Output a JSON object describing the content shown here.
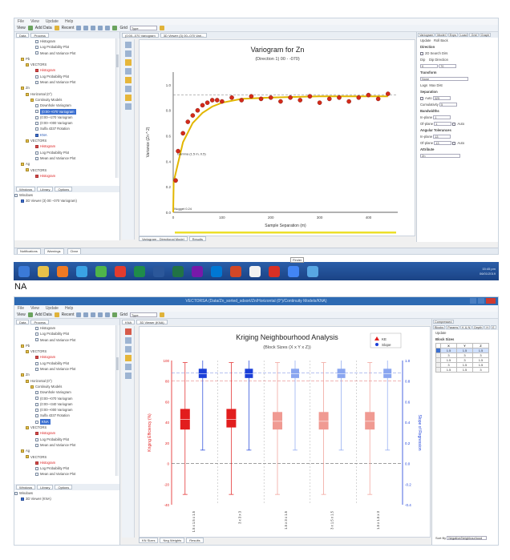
{
  "top": {
    "menu": [
      "File",
      "View",
      "Update",
      "Help"
    ],
    "toolbar": {
      "view": "View",
      "add_data": "Add Data",
      "recent": "Recent",
      "grid_label": "Grid",
      "type_value": "Type"
    },
    "left_tabs": [
      "Data",
      "Process"
    ],
    "tree": [
      {
        "text": "Histogram",
        "indent": 4,
        "icon": "chart-icon",
        "cls": ""
      },
      {
        "text": "Log Probability Plot",
        "indent": 4,
        "icon": "chart-icon",
        "cls": ""
      },
      {
        "text": "Mean and Variance Plot",
        "indent": 4,
        "icon": "chart-icon",
        "cls": ""
      },
      {
        "text": "Pb",
        "indent": 1,
        "icon": "folder-icon",
        "cls": ""
      },
      {
        "text": "VECTORS",
        "indent": 2,
        "icon": "folder-icon",
        "cls": ""
      },
      {
        "text": "Histogram",
        "indent": 4,
        "icon": "chart-icon",
        "cls": "red"
      },
      {
        "text": "Log Probability Plot",
        "indent": 4,
        "icon": "chart-icon",
        "cls": ""
      },
      {
        "text": "Mean and Variance Plot",
        "indent": 4,
        "icon": "chart-icon",
        "cls": ""
      },
      {
        "text": "Zn",
        "indent": 1,
        "icon": "folder-icon",
        "cls": ""
      },
      {
        "text": "Horizontal (0°)",
        "indent": 2,
        "icon": "folder-icon",
        "cls": ""
      },
      {
        "text": "Continuity Models",
        "indent": 3,
        "icon": "folder-icon",
        "cls": ""
      },
      {
        "text": "Downhole Variogram",
        "indent": 4,
        "icon": "chart-icon",
        "cls": ""
      },
      {
        "text": "(0:00-+070 Variogram",
        "indent": 4,
        "icon": "chart-icon",
        "cls": "sel"
      },
      {
        "text": "(0:00-+270 Variogram",
        "indent": 4,
        "icon": "chart-icon",
        "cls": ""
      },
      {
        "text": "(0:00-+000 Variogram",
        "indent": 4,
        "icon": "chart-icon",
        "cls": ""
      },
      {
        "text": "Sulfa 4337 Rotation",
        "indent": 4,
        "icon": "chart-icon",
        "cls": ""
      },
      {
        "text": "KNA",
        "indent": 4,
        "icon": "chart-icon",
        "cls": "blu"
      },
      {
        "text": "VECTORS",
        "indent": 2,
        "icon": "folder-icon",
        "cls": ""
      },
      {
        "text": "Histogram",
        "indent": 4,
        "icon": "chart-icon",
        "cls": "red"
      },
      {
        "text": "Log Probability Plot",
        "indent": 4,
        "icon": "chart-icon",
        "cls": ""
      },
      {
        "text": "Mean and Variance Plot",
        "indent": 4,
        "icon": "chart-icon",
        "cls": ""
      },
      {
        "text": "Ag",
        "indent": 1,
        "icon": "folder-icon",
        "cls": ""
      },
      {
        "text": "VECTORS",
        "indent": 2,
        "icon": "folder-icon",
        "cls": ""
      },
      {
        "text": "Histogram",
        "indent": 4,
        "icon": "chart-icon",
        "cls": "red"
      }
    ],
    "bottom_tabs": [
      "Windows",
      "Library",
      "Options"
    ],
    "windows_list": [
      "Windows",
      "3D Viewer (3) 00:--070 Variogram)"
    ],
    "doc_tabs": [
      "(0:00--070 Variogram",
      "3D Viewer (3) 00--070 Vari..."
    ],
    "status_tabs": [
      "Notifications",
      "Warnings",
      "Clear"
    ],
    "bottom_plot_tabs": [
      "Variogram - Directional Model",
      "Results"
    ],
    "right": {
      "tab_labels": [
        "Variogram",
        "Model",
        "Exps",
        "Load",
        "Grid",
        "Graph"
      ],
      "update_label": "Update",
      "rollback_label": "Roll Back",
      "direction_label": "Direction",
      "use_search_label": "2D Search Dirs",
      "dip_label": "Dip",
      "dip_dir_label": "Dip Direction",
      "dip_value": "0",
      "dip_dir_value": "70",
      "transform_label": "Transform",
      "transform_value": "None",
      "lag_label": "Lags",
      "max_dist_label": "Max Dist",
      "sep_label": "Separation",
      "auto_label": "Auto",
      "auto_value": "325",
      "cumulative_label": "Cumulativity",
      "cumulative_value": "5",
      "bandwidths_label": "Bandwidths",
      "inplane_label": "In-plane",
      "inplane_value": "1",
      "ofplane_label": "Of-plane",
      "ofplane_value": "1",
      "angular_label": "Angular Tolerances",
      "ang_inplane_value": "13",
      "ang_ofplane_value": "13",
      "auto_chk_label": "Auto",
      "attribute_label": "Attribute",
      "attribute_value": "Zn"
    },
    "chart_data": {
      "type": "scatter",
      "title": "Variogram for Zn",
      "subtitle": "(Direction 1) 00 - -070)",
      "xlabel": "Sample Separation (m)",
      "ylabel": "Variance (Zn ^ 2)",
      "xlim": [
        0,
        460
      ],
      "ylim": [
        0,
        1.1
      ],
      "x_ticks": [
        "0",
        "100",
        "200",
        "300",
        "400"
      ],
      "y_ticks": [
        "0.0",
        "0.2",
        "0.4",
        "0.6",
        "0.8",
        "1.0"
      ],
      "sill": 0.92,
      "annotations": [
        "Gamma (1.5 m, 0.5)",
        "Nugget 0.24"
      ],
      "series": [
        {
          "name": "Experimental",
          "color": "#d42a1a",
          "x": [
            5,
            10,
            20,
            30,
            40,
            50,
            60,
            70,
            80,
            90,
            100,
            120,
            140,
            160,
            180,
            200,
            220,
            240,
            260,
            280,
            300,
            320,
            340,
            360,
            380,
            400,
            420,
            440
          ],
          "y": [
            0.25,
            0.48,
            0.62,
            0.71,
            0.76,
            0.8,
            0.84,
            0.86,
            0.88,
            0.88,
            0.87,
            0.9,
            0.88,
            0.91,
            0.89,
            0.9,
            0.87,
            0.9,
            0.88,
            0.91,
            0.86,
            0.89,
            0.9,
            0.87,
            0.9,
            0.92,
            0.89,
            0.93
          ]
        },
        {
          "name": "Model",
          "color": "#e2b600",
          "x": [
            0,
            1,
            20,
            40,
            60,
            80,
            100,
            140,
            200,
            300,
            440
          ],
          "y": [
            0,
            0.24,
            0.55,
            0.7,
            0.78,
            0.83,
            0.86,
            0.89,
            0.9,
            0.91,
            0.91
          ]
        }
      ]
    }
  },
  "taskbar": {
    "time": "15:45 pm",
    "date": "06/01/2019",
    "tooltip": "Finder"
  },
  "na_label": "NA",
  "bottom": {
    "window_title": "VECTORSA (Data/Zn_sorted_sdsort/Zn/Horizontal (0°)/Continuity Models/KNA)",
    "menu": [
      "File",
      "View",
      "Update",
      "Help"
    ],
    "left_tabs": [
      "Data",
      "Process"
    ],
    "tree": [
      {
        "text": "Histogram",
        "indent": 4,
        "icon": "chart-icon",
        "cls": ""
      },
      {
        "text": "Log Probability Plot",
        "indent": 4,
        "icon": "chart-icon",
        "cls": ""
      },
      {
        "text": "Mean and Variance Plot",
        "indent": 4,
        "icon": "chart-icon",
        "cls": ""
      },
      {
        "text": "Pb",
        "indent": 1,
        "icon": "folder-icon",
        "cls": ""
      },
      {
        "text": "VECTORS",
        "indent": 2,
        "icon": "folder-icon",
        "cls": ""
      },
      {
        "text": "Histogram",
        "indent": 4,
        "icon": "chart-icon",
        "cls": "red"
      },
      {
        "text": "Log Probability Plot",
        "indent": 4,
        "icon": "chart-icon",
        "cls": ""
      },
      {
        "text": "Mean and Variance Plot",
        "indent": 4,
        "icon": "chart-icon",
        "cls": ""
      },
      {
        "text": "Zn",
        "indent": 1,
        "icon": "folder-icon",
        "cls": ""
      },
      {
        "text": "Horizontal (0°)",
        "indent": 2,
        "icon": "folder-icon",
        "cls": ""
      },
      {
        "text": "Continuity Models",
        "indent": 3,
        "icon": "folder-icon",
        "cls": ""
      },
      {
        "text": "Downhole Variogram",
        "indent": 4,
        "icon": "chart-icon",
        "cls": ""
      },
      {
        "text": "(0:00-+070 Variogram",
        "indent": 4,
        "icon": "chart-icon",
        "cls": ""
      },
      {
        "text": "(0:00-+340 Variogram",
        "indent": 4,
        "icon": "chart-icon",
        "cls": ""
      },
      {
        "text": "(0:00-+000 Variogram",
        "indent": 4,
        "icon": "chart-icon",
        "cls": ""
      },
      {
        "text": "Sulfa 4337 Rotation",
        "indent": 4,
        "icon": "chart-icon",
        "cls": ""
      },
      {
        "text": "KNA",
        "indent": 4,
        "icon": "chart-icon",
        "cls": "sel"
      },
      {
        "text": "VECTORS",
        "indent": 2,
        "icon": "folder-icon",
        "cls": ""
      },
      {
        "text": "Histogram",
        "indent": 4,
        "icon": "chart-icon",
        "cls": "red"
      },
      {
        "text": "Log Probability Plot",
        "indent": 4,
        "icon": "chart-icon",
        "cls": ""
      },
      {
        "text": "Mean and Variance Plot",
        "indent": 4,
        "icon": "chart-icon",
        "cls": ""
      },
      {
        "text": "Ag",
        "indent": 1,
        "icon": "folder-icon",
        "cls": ""
      },
      {
        "text": "VECTORS",
        "indent": 2,
        "icon": "folder-icon",
        "cls": ""
      },
      {
        "text": "Histogram",
        "indent": 4,
        "icon": "chart-icon",
        "cls": "red"
      },
      {
        "text": "Log Probability Plot",
        "indent": 4,
        "icon": "chart-icon",
        "cls": ""
      },
      {
        "text": "Mean and Variance Plot",
        "indent": 4,
        "icon": "chart-icon",
        "cls": ""
      }
    ],
    "bottom_tabs": [
      "Windows",
      "Library",
      "Options"
    ],
    "windows_list": [
      "Windows",
      "3D Viewer (KNA)"
    ],
    "doc_tabs": [
      "KNA",
      "3D Viewer (KNA)"
    ],
    "bottom_plot_tabs": [
      "KN Sizes",
      "Neg Weights",
      "Results"
    ],
    "right": {
      "tab_labels": [
        "Compressed"
      ],
      "sub_tabs": [
        "Blocks",
        "Params",
        "K & N",
        "Depth",
        "H",
        "E"
      ],
      "update_label": "Update",
      "block_sizes_label": "Block Sizes",
      "cols": [
        "X",
        "Y",
        "Z"
      ],
      "rows": [
        [
          "1.5",
          "1.5",
          "1.5"
        ],
        [
          "3",
          "3",
          "3"
        ],
        [
          "1.5",
          "3",
          "1.5"
        ],
        [
          "3",
          "1.5",
          "1.5"
        ],
        [
          "1.5",
          "1.5",
          "3"
        ]
      ],
      "sort_label": "Sort By",
      "sort_value": "Negative/Neighbourhood"
    },
    "chart_data": {
      "type": "box",
      "title": "Kriging Neighbourhood Analysis",
      "subtitle": "(Block Sizes (X x Y x Z))",
      "ylabel_left": "Kriging Efficiency (%)",
      "ylabel_right": "Slope of Regression",
      "yleft_lim": [
        -40,
        100
      ],
      "yright_lim": [
        -0.4,
        1.0
      ],
      "yleft_ticks": [
        "100",
        "80",
        "60",
        "40",
        "20",
        "0",
        "-20",
        "-40"
      ],
      "yright_ticks": [
        "1.0",
        "0.8",
        "0.6",
        "0.4",
        "0.2",
        "0.0",
        "-0.2",
        "-0.4"
      ],
      "legend": [
        "KE",
        "Slope"
      ],
      "categories": [
        "1.5 x 1.5 x 1.5",
        "3 x 3 x 3",
        "1.5 x 3 x 1.5",
        "3 x 1.5 x 1.5",
        "1.5 x 1.5 x 3"
      ],
      "ke_median": [
        43,
        43,
        41,
        41,
        41
      ],
      "ke_q1": [
        33,
        35,
        33,
        33,
        33
      ],
      "ke_q3": [
        53,
        53,
        50,
        50,
        50
      ],
      "ke_min": [
        -30,
        -30,
        -30,
        -30,
        -30
      ],
      "ke_max": [
        98,
        98,
        98,
        98,
        98
      ],
      "slope_median": [
        0.87,
        0.87,
        0.87,
        0.87,
        0.87
      ],
      "slope_q1": [
        0.83,
        0.83,
        0.83,
        0.83,
        0.83
      ],
      "slope_q3": [
        0.92,
        0.92,
        0.92,
        0.92,
        0.92
      ],
      "slope_min": [
        0.13,
        0.13,
        0.13,
        0.13,
        0.13
      ],
      "slope_max": [
        1.0,
        1.0,
        1.0,
        1.0,
        1.0
      ],
      "colors": {
        "ke_dark": "#e21d1d",
        "ke_light": "#f09a92",
        "slope_dark": "#1b3fd8",
        "slope_light": "#8aa6f0"
      }
    }
  }
}
